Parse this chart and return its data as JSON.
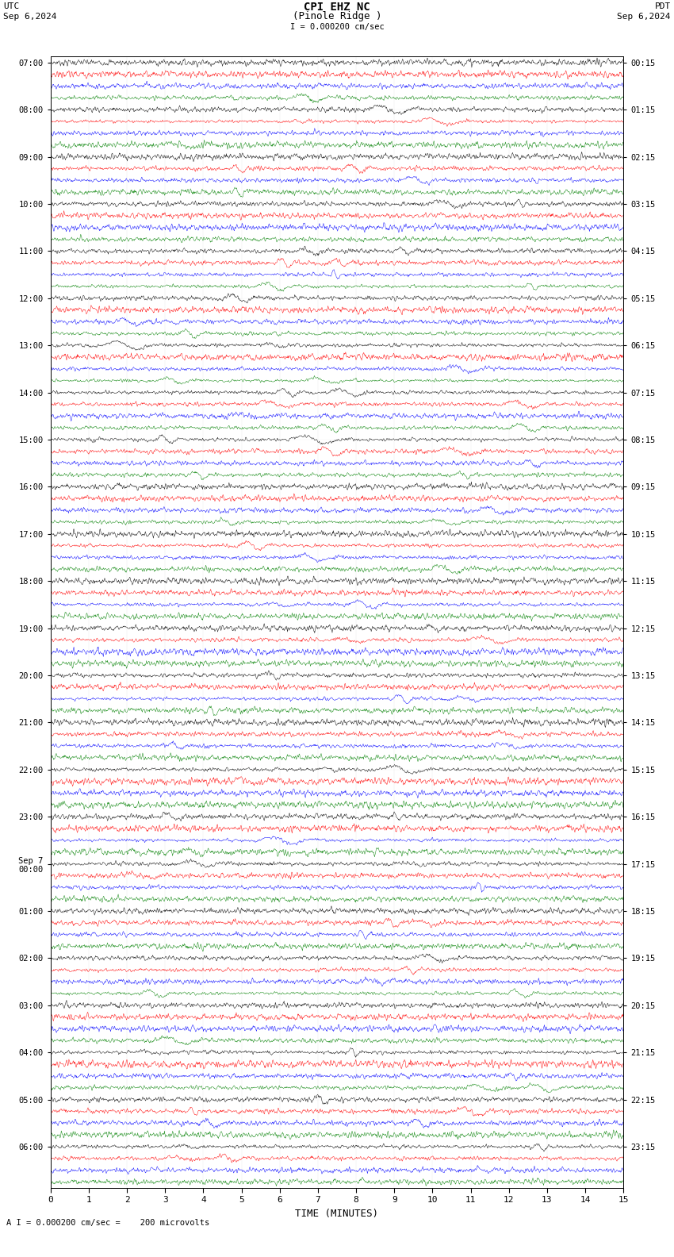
{
  "title_line1": "CPI EHZ NC",
  "title_line2": "(Pinole Ridge )",
  "scale_label": "I = 0.000200 cm/sec",
  "utc_label": "UTC",
  "pdt_label": "PDT",
  "date_left": "Sep 6,2024",
  "date_right": "Sep 6,2024",
  "xlabel": "TIME (MINUTES)",
  "bottom_label": "A I = 0.000200 cm/sec =    200 microvolts",
  "utc_times_labeled": [
    "07:00",
    "08:00",
    "09:00",
    "10:00",
    "11:00",
    "12:00",
    "13:00",
    "14:00",
    "15:00",
    "16:00",
    "17:00",
    "18:00",
    "19:00",
    "20:00",
    "21:00",
    "22:00",
    "23:00",
    "Sep 7\n00:00",
    "01:00",
    "02:00",
    "03:00",
    "04:00",
    "05:00",
    "06:00"
  ],
  "pdt_times_labeled": [
    "00:15",
    "01:15",
    "02:15",
    "03:15",
    "04:15",
    "05:15",
    "06:15",
    "07:15",
    "08:15",
    "09:15",
    "10:15",
    "11:15",
    "12:15",
    "13:15",
    "14:15",
    "15:15",
    "16:15",
    "17:15",
    "18:15",
    "19:15",
    "20:15",
    "21:15",
    "22:15",
    "23:15"
  ],
  "trace_color_cycle": [
    "black",
    "red",
    "blue",
    "green"
  ],
  "n_rows": 96,
  "n_hours": 24,
  "n_minutes": 15,
  "bg_color": "white",
  "x_ticks": [
    0,
    1,
    2,
    3,
    4,
    5,
    6,
    7,
    8,
    9,
    10,
    11,
    12,
    13,
    14,
    15
  ],
  "fig_width": 8.5,
  "fig_height": 15.84
}
